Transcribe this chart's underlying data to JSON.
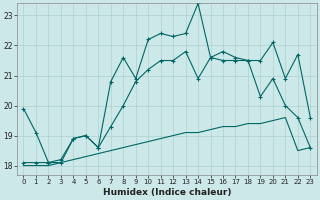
{
  "xlabel": "Humidex (Indice chaleur)",
  "bg_color": "#cce8e8",
  "line_color": "#006666",
  "grid_color": "#b0d0d0",
  "x_ticks": [
    0,
    1,
    2,
    3,
    4,
    5,
    6,
    7,
    8,
    9,
    10,
    11,
    12,
    13,
    14,
    15,
    16,
    17,
    18,
    19,
    20,
    21,
    22,
    23
  ],
  "y_ticks": [
    18,
    19,
    20,
    21,
    22,
    23
  ],
  "xlim": [
    -0.5,
    23.5
  ],
  "ylim": [
    17.7,
    23.4
  ],
  "line1_x": [
    0,
    1,
    2,
    3,
    4,
    5,
    6,
    7,
    8,
    9,
    10,
    11,
    12,
    13,
    14,
    15,
    16,
    17,
    18,
    19,
    20,
    21,
    22,
    23
  ],
  "line1_y": [
    19.9,
    19.1,
    18.1,
    18.1,
    18.9,
    19.0,
    18.6,
    20.8,
    21.6,
    20.9,
    22.2,
    22.4,
    22.3,
    22.4,
    23.4,
    21.6,
    21.8,
    21.6,
    21.5,
    21.5,
    22.1,
    20.9,
    21.7,
    19.6
  ],
  "line2_x": [
    0,
    1,
    2,
    3,
    4,
    5,
    6,
    7,
    8,
    9,
    10,
    11,
    12,
    13,
    14,
    15,
    16,
    17,
    18,
    19,
    20,
    21,
    22,
    23
  ],
  "line2_y": [
    18.0,
    18.0,
    18.0,
    18.1,
    18.2,
    18.3,
    18.4,
    18.5,
    18.6,
    18.7,
    18.8,
    18.9,
    19.0,
    19.1,
    19.1,
    19.2,
    19.3,
    19.3,
    19.4,
    19.4,
    19.5,
    19.6,
    18.5,
    18.6
  ],
  "line3_x": [
    0,
    1,
    2,
    3,
    4,
    5,
    6,
    7,
    8,
    9,
    10,
    11,
    12,
    13,
    14,
    15,
    16,
    17,
    18,
    19,
    20,
    21,
    22,
    23
  ],
  "line3_y": [
    18.1,
    18.1,
    18.1,
    18.2,
    18.9,
    19.0,
    18.6,
    19.3,
    20.0,
    20.8,
    21.2,
    21.5,
    21.5,
    21.8,
    20.9,
    21.6,
    21.5,
    21.5,
    21.5,
    20.3,
    20.9,
    20.0,
    19.6,
    18.6
  ]
}
